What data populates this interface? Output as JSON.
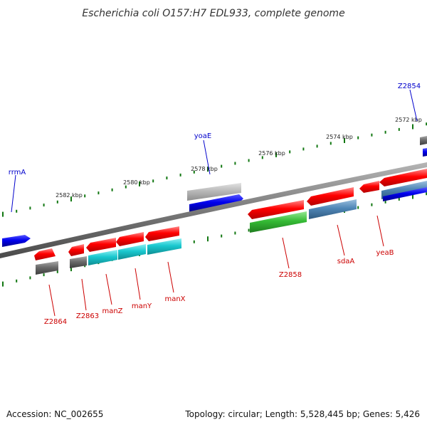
{
  "title": "Escherichia coli O157:H7 EDL933, complete genome",
  "accession_text": "Accession: NC_002655",
  "topology_text": "Topology: circular; Length: 5,528,445 bp; Genes: 5,426",
  "ruler": {
    "tick_labels": [
      "2572 kbp",
      "2574 kbp",
      "2576 kbp",
      "2578 kbp",
      "2580 kbp",
      "2582 kbp"
    ]
  },
  "genes": {
    "above": [
      "rrmA",
      "yoaE",
      "Z2854"
    ],
    "below": [
      "Z2864",
      "Z2863",
      "manZ",
      "manY",
      "manX",
      "Z2858",
      "sdaA",
      "yeaB"
    ]
  },
  "colors": {
    "red": "#ff0000",
    "blue": "#0000ee",
    "gray": "#6b6b6b",
    "light_gray": "#b9b9b9",
    "cyan": "#19c8cf",
    "green": "#35bb35",
    "steel_blue": "#4f86b6",
    "backbone": "#7a7a7a",
    "tick": "#117711",
    "label_blue": "#0000cc",
    "label_red": "#cc0000"
  }
}
